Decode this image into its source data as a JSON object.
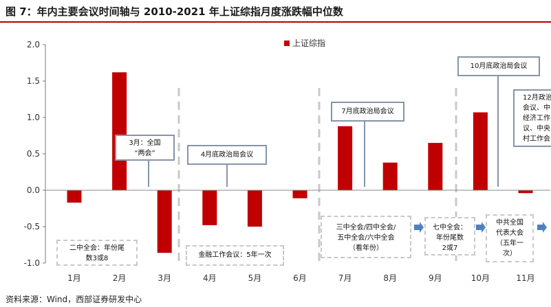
{
  "title": "图 7：年内主要会议时间轴与 2010-2021 年上证综指月度涨跌幅中位数",
  "source": "资料来源：Wind，西部证券研发中心",
  "colors": {
    "bar": "#c00000",
    "accent_rule": "#b30000",
    "solid_box": "#8494a8",
    "dashed": "#c8c8c8",
    "arrow": "#4f81bd"
  },
  "chart_data": {
    "type": "bar",
    "categories": [
      "1月",
      "2月",
      "3月",
      "4月",
      "5月",
      "6月",
      "7月",
      "8月",
      "9月",
      "10月",
      "11月"
    ],
    "series": [
      {
        "name": "上证综指",
        "values": [
          -0.17,
          1.62,
          -0.86,
          -0.48,
          -0.5,
          -0.11,
          0.88,
          0.38,
          0.65,
          1.07,
          -0.04
        ]
      }
    ],
    "ylim": [
      -1.0,
      2.0
    ],
    "yticks": [
      "2.0",
      "1.5",
      "1.0",
      "0.5",
      "0.0",
      "-0.5",
      "-1.0"
    ],
    "grid": false,
    "legend": "top-center"
  },
  "annotations": {
    "top": [
      {
        "lines": [
          "3月：全国",
          "“两会”"
        ]
      },
      {
        "lines": [
          "4月底政治局会议"
        ]
      },
      {
        "lines": [
          "7月底政治局会议"
        ]
      },
      {
        "lines": [
          "10月底政治局会议"
        ]
      },
      {
        "lines": [
          "12月政治",
          "会议、中",
          "经济工作",
          "议、中央",
          "村工作会"
        ]
      }
    ],
    "bottom": [
      {
        "lines": [
          "二中全会：年份尾",
          "数3或8"
        ]
      },
      {
        "lines": [
          "金融工作会议：5年一次"
        ]
      },
      {
        "lines": [
          "三中全会/四中全会/",
          "五中全会/六中全会",
          "（看年份）"
        ]
      },
      {
        "lines": [
          "七中全会：",
          "年份尾数",
          "2或7"
        ]
      },
      {
        "lines": [
          "中共全国",
          "代表大会",
          "（五年一",
          "次）"
        ]
      }
    ]
  }
}
